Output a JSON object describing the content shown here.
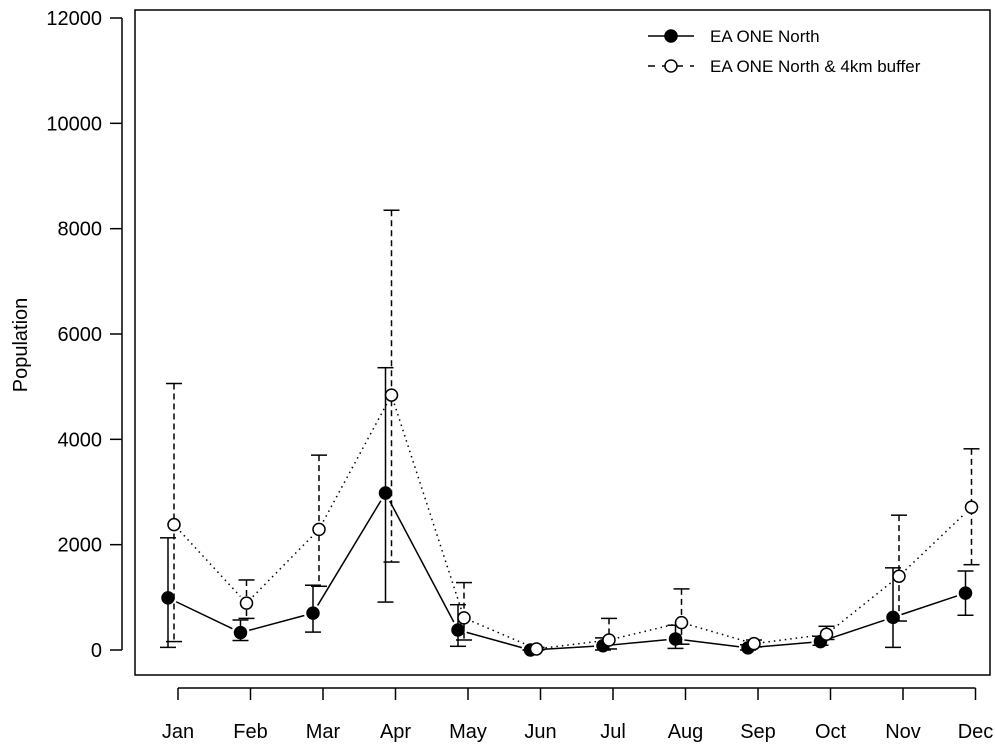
{
  "chart_data": {
    "type": "line",
    "title": "",
    "xlabel": "",
    "ylabel": "Population",
    "ylim": [
      0,
      12000
    ],
    "yticks": [
      0,
      2000,
      4000,
      6000,
      8000,
      10000,
      12000
    ],
    "categories": [
      "Jan",
      "Feb",
      "Mar",
      "Apr",
      "May",
      "Jun",
      "Jul",
      "Aug",
      "Sep",
      "Oct",
      "Nov",
      "Dec"
    ],
    "legend_position": "top-right",
    "grid": false,
    "series": [
      {
        "name": "EA ONE North",
        "marker": "filled-circle",
        "line_style": "solid",
        "values": [
          990,
          330,
          700,
          2980,
          380,
          0,
          80,
          210,
          40,
          160,
          620,
          1080
        ],
        "lower": [
          50,
          180,
          340,
          910,
          70,
          0,
          0,
          30,
          0,
          90,
          50,
          660
        ],
        "upper": [
          2130,
          570,
          1230,
          5360,
          860,
          0,
          230,
          470,
          100,
          260,
          1560,
          1500
        ]
      },
      {
        "name": "EA ONE North & 4km buffer",
        "marker": "open-circle",
        "line_style": "dotted",
        "values": [
          2380,
          890,
          2290,
          4840,
          610,
          20,
          190,
          520,
          120,
          300,
          1400,
          2710
        ],
        "lower": [
          160,
          600,
          1210,
          1670,
          190,
          0,
          20,
          110,
          60,
          200,
          550,
          1620
        ],
        "upper": [
          5060,
          1330,
          3700,
          8350,
          1280,
          50,
          600,
          1160,
          190,
          450,
          2560,
          3820
        ]
      }
    ]
  }
}
